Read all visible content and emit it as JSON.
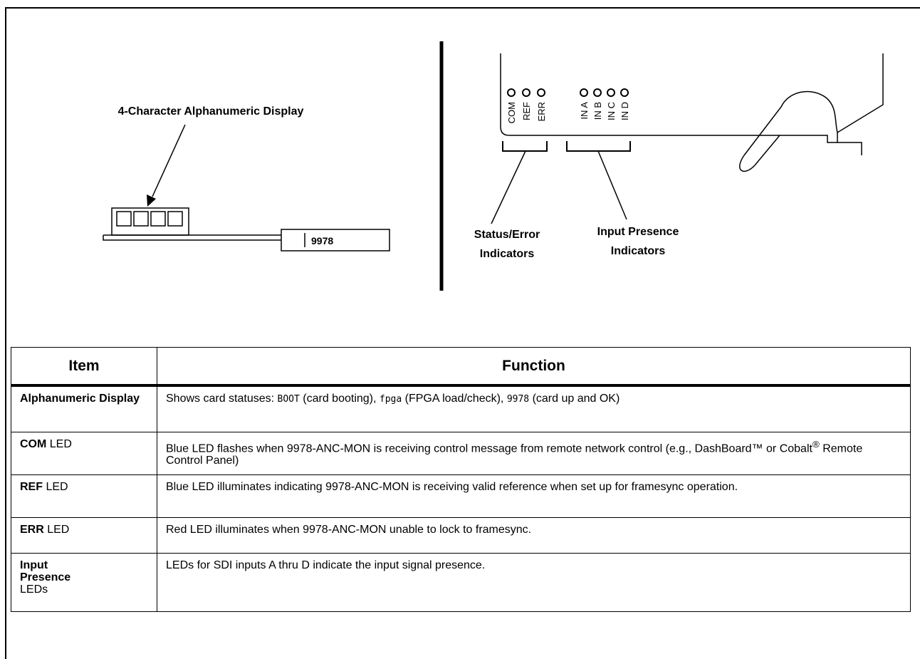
{
  "left_diagram": {
    "label": "4-Character Alphanumeric Display",
    "card_number": "9978"
  },
  "right_diagram": {
    "leds": [
      "COM",
      "REF",
      "ERR",
      "IN A",
      "IN B",
      "IN C",
      "IN D"
    ],
    "status_label": [
      "Status/Error",
      "Indicators"
    ],
    "input_label": [
      "Input Presence",
      "Indicators"
    ]
  },
  "table": {
    "headers": [
      "Item",
      "Function"
    ],
    "rows": [
      {
        "item": [
          "Alphanumeric Display"
        ],
        "function": [
          "Shows card statuses: ",
          "BOOT",
          " (card booting), ",
          "fpga",
          " (FPGA load/check), ",
          "9978",
          " (card up and OK)"
        ]
      },
      {
        "item": [
          "COM",
          " LED"
        ],
        "function": [
          "Blue LED flashes when 9978-ANC-MON is receiving control message from remote network control (e.g., DashBoard™ or Cobalt",
          "®",
          " Remote Control Panel)"
        ]
      },
      {
        "item": [
          "REF",
          " LED"
        ],
        "function": [
          "Blue LED illuminates indicating 9978-ANC-MON is receiving valid reference when set up for framesync operation."
        ]
      },
      {
        "item": [
          "ERR",
          " LED"
        ],
        "function": [
          "Red LED illuminates when 9978-ANC-MON unable to lock to framesync."
        ]
      },
      {
        "item": [
          "Input Presence",
          "LEDs"
        ],
        "function": [
          "LEDs for SDI inputs A thru D indicate the input signal presence."
        ]
      }
    ]
  }
}
